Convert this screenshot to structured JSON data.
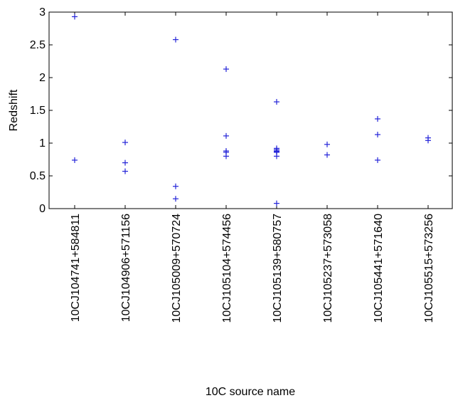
{
  "chart_data": {
    "type": "scatter",
    "marker": "+",
    "marker_color": "#2323d8",
    "xlabel": "10C source name",
    "ylabel": "Redshift",
    "ylim": [
      0,
      3
    ],
    "yticks": [
      "0",
      "0.5",
      "1",
      "1.5",
      "2",
      "2.5",
      "3"
    ],
    "grid": false,
    "categories": [
      "10CJ104741+584811",
      "10CJ104906+571156",
      "10CJ105009+570724",
      "10CJ105104+574456",
      "10CJ105139+580757",
      "10CJ105237+573058",
      "10CJ105441+571640",
      "10CJ105515+573256"
    ],
    "points": [
      {
        "category": "10CJ104741+584811",
        "values": [
          2.93,
          0.74
        ]
      },
      {
        "category": "10CJ104906+571156",
        "values": [
          1.01,
          0.7,
          0.57
        ]
      },
      {
        "category": "10CJ105009+570724",
        "values": [
          2.58,
          0.34,
          0.15
        ]
      },
      {
        "category": "10CJ105104+574456",
        "values": [
          2.13,
          1.11,
          0.88,
          0.86,
          0.8
        ]
      },
      {
        "category": "10CJ105139+580757",
        "values": [
          1.63,
          0.92,
          0.9,
          0.88,
          0.87,
          0.86,
          0.8,
          0.08
        ]
      },
      {
        "category": "10CJ105237+573058",
        "values": [
          0.98,
          0.82
        ]
      },
      {
        "category": "10CJ105441+571640",
        "values": [
          1.37,
          1.13,
          0.74
        ]
      },
      {
        "category": "10CJ105515+573256",
        "values": [
          1.08,
          1.04
        ]
      }
    ]
  }
}
